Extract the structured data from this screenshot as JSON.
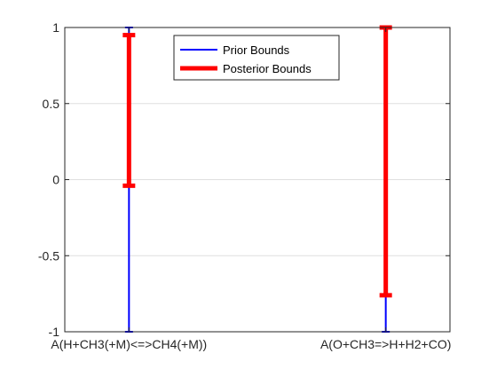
{
  "chart_data": {
    "type": "interval",
    "categories": [
      "A(H+CH3(+M)<=>CH4(+M))",
      "A(O+CH3=>H+H2+CO)"
    ],
    "series": [
      {
        "name": "Prior Bounds",
        "color": "#0000ff",
        "intervals": [
          [
            -1,
            1
          ],
          [
            -1,
            1
          ]
        ]
      },
      {
        "name": "Posterior Bounds",
        "color": "#ff0000",
        "intervals": [
          [
            -0.04,
            0.95
          ],
          [
            -0.76,
            1
          ]
        ]
      }
    ],
    "xlim": [
      0.75,
      2.25
    ],
    "x_positions": [
      1,
      2
    ],
    "ylim": [
      -1,
      1
    ],
    "yticks": [
      -1,
      -0.5,
      0,
      0.5,
      1
    ],
    "ytick_labels": [
      "-1",
      "-0.5",
      "0",
      "0.5",
      "1"
    ],
    "grid": "horizontal",
    "legend_position": "top-center"
  },
  "colors": {
    "axis": "#262626",
    "grid": "#dfdfdf"
  }
}
